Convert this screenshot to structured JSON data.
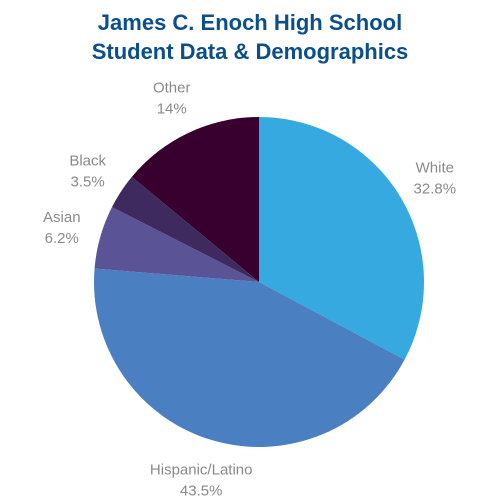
{
  "chart_data": {
    "type": "pie",
    "title": [
      "James C. Enoch High School",
      "Student Data & Demographics"
    ],
    "slices": [
      {
        "label": "White",
        "value": 32.8,
        "value_label": "32.8%",
        "color": "#36a9e1"
      },
      {
        "label": "Hispanic/Latino",
        "value": 43.5,
        "value_label": "43.5%",
        "color": "#4a7fc2"
      },
      {
        "label": "Asian",
        "value": 6.2,
        "value_label": "6.2%",
        "color": "#5a5497"
      },
      {
        "label": "Black",
        "value": 3.5,
        "value_label": "3.5%",
        "color": "#3f2a5f"
      },
      {
        "label": "Other",
        "value": 14,
        "value_label": "14%",
        "color": "#37002f"
      }
    ],
    "title_color": "#0b4f8a",
    "label_color": "#8a8a8a",
    "start": "12 o'clock",
    "direction": "clockwise"
  }
}
